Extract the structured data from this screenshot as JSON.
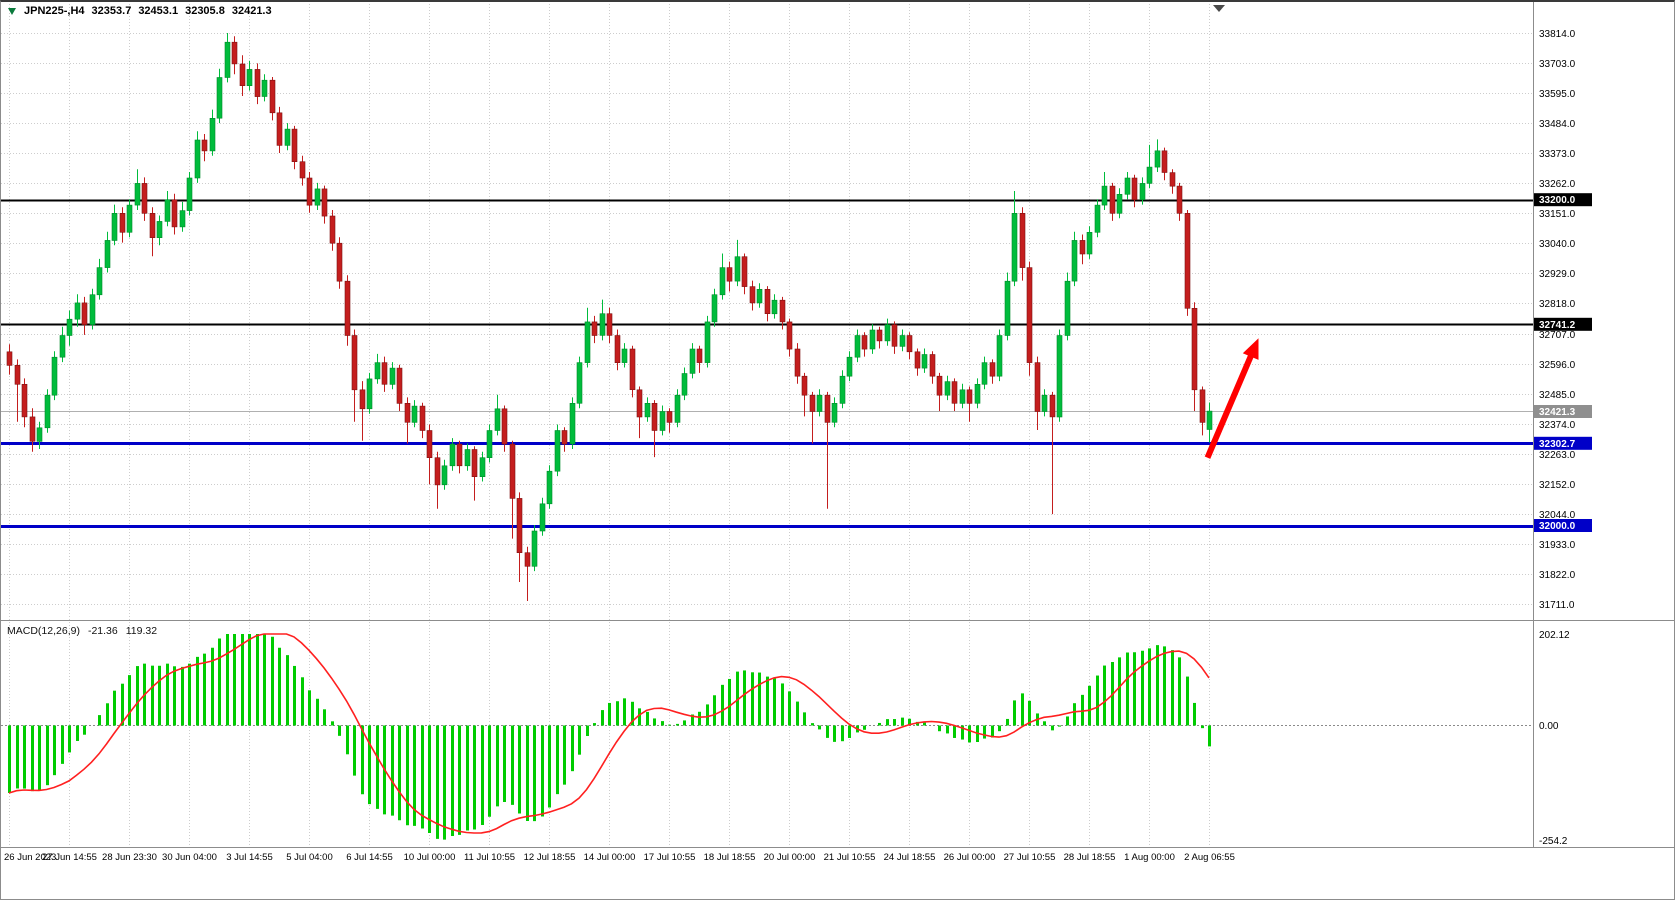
{
  "header": {
    "symbol_period": "JPN225-,H4",
    "open": "32353.7",
    "high": "32453.1",
    "low": "32305.8",
    "close": "32421.3"
  },
  "colors": {
    "bull": "#00bc3c",
    "bear": "#c41e1e",
    "bull_edge": "#008a2a",
    "bear_edge": "#7e1212",
    "macd_hist": "#00cc00",
    "macd_signal": "#ff2020",
    "hline_black": "#000000",
    "hline_blue": "#0000c8",
    "current_price_line": "#b0b0b0",
    "current_price_badge": "#8f8f8f",
    "grid": "#cdcdcd",
    "arrow": "#ff0000"
  },
  "chart_data": {
    "type": "candlestick",
    "symbol": "JPN225-",
    "timeframe": "H4",
    "price_axis": {
      "top": 33814.0,
      "bottom": 31711.0,
      "tick_labels": [
        "33814.0",
        "33703.0",
        "33595.0",
        "33484.0",
        "33373.0",
        "33262.0",
        "33151.0",
        "33040.0",
        "32929.0",
        "32818.0",
        "32707.0",
        "32596.0",
        "32485.0",
        "32374.0",
        "32263.0",
        "32152.0",
        "32044.0",
        "31933.0",
        "31822.0",
        "31711.0"
      ]
    },
    "time_labels": [
      "26 Jun 2023",
      "27 Jun 14:55",
      "28 Jun 23:30",
      "30 Jun 04:00",
      "3 Jul 14:55",
      "5 Jul 04:00",
      "6 Jul 14:55",
      "10 Jul 00:00",
      "11 Jul 10:55",
      "12 Jul 18:55",
      "14 Jul 00:00",
      "17 Jul 10:55",
      "18 Jul 18:55",
      "20 Jul 00:00",
      "21 Jul 10:55",
      "24 Jul 18:55",
      "26 Jul 00:00",
      "27 Jul 10:55",
      "28 Jul 18:55",
      "1 Aug 00:00",
      "2 Aug 06:55"
    ],
    "bars_per_label": 8,
    "candles": [
      [
        32640,
        32668,
        32556,
        32590
      ],
      [
        32590,
        32612,
        32382,
        32520
      ],
      [
        32520,
        32542,
        32362,
        32400
      ],
      [
        32400,
        32432,
        32272,
        32310
      ],
      [
        32310,
        32382,
        32282,
        32360
      ],
      [
        32360,
        32502,
        32342,
        32480
      ],
      [
        32480,
        32642,
        32462,
        32620
      ],
      [
        32620,
        32732,
        32602,
        32700
      ],
      [
        32700,
        32792,
        32662,
        32760
      ],
      [
        32760,
        32852,
        32732,
        32820
      ],
      [
        32820,
        32842,
        32702,
        32740
      ],
      [
        32740,
        32872,
        32722,
        32850
      ],
      [
        32850,
        32982,
        32832,
        32950
      ],
      [
        32950,
        33082,
        32932,
        33050
      ],
      [
        33050,
        33182,
        33032,
        33150
      ],
      [
        33150,
        33172,
        33042,
        33080
      ],
      [
        33080,
        33202,
        33062,
        33180
      ],
      [
        33180,
        33312,
        33162,
        33260
      ],
      [
        33260,
        33282,
        33122,
        33150
      ],
      [
        33150,
        33172,
        32992,
        33060
      ],
      [
        33060,
        33142,
        33032,
        33120
      ],
      [
        33120,
        33232,
        33102,
        33200
      ],
      [
        33200,
        33222,
        33072,
        33100
      ],
      [
        33100,
        33192,
        33082,
        33160
      ],
      [
        33160,
        33302,
        33142,
        33280
      ],
      [
        33280,
        33452,
        33262,
        33420
      ],
      [
        33420,
        33442,
        33342,
        33380
      ],
      [
        33380,
        33532,
        33362,
        33500
      ],
      [
        33500,
        33682,
        33482,
        33650
      ],
      [
        33650,
        33814,
        33632,
        33780
      ],
      [
        33780,
        33802,
        33662,
        33700
      ],
      [
        33700,
        33732,
        33582,
        33620
      ],
      [
        33620,
        33712,
        33602,
        33680
      ],
      [
        33680,
        33702,
        33552,
        33580
      ],
      [
        33580,
        33662,
        33562,
        33640
      ],
      [
        33640,
        33652,
        33492,
        33520
      ],
      [
        33520,
        33542,
        33372,
        33400
      ],
      [
        33400,
        33482,
        33382,
        33460
      ],
      [
        33460,
        33472,
        33312,
        33340
      ],
      [
        33340,
        33362,
        33252,
        33280
      ],
      [
        33280,
        33302,
        33152,
        33180
      ],
      [
        33180,
        33262,
        33162,
        33240
      ],
      [
        33240,
        33252,
        33112,
        33140
      ],
      [
        33140,
        33162,
        33012,
        33040
      ],
      [
        33040,
        33062,
        32872,
        32900
      ],
      [
        32900,
        32922,
        32662,
        32700
      ],
      [
        32700,
        32722,
        32382,
        32500
      ],
      [
        32500,
        32532,
        32312,
        32430
      ],
      [
        32430,
        32562,
        32412,
        32540
      ],
      [
        32540,
        32632,
        32522,
        32600
      ],
      [
        32600,
        32622,
        32492,
        32520
      ],
      [
        32520,
        32602,
        32502,
        32580
      ],
      [
        32580,
        32592,
        32422,
        32450
      ],
      [
        32450,
        32472,
        32302,
        32380
      ],
      [
        32380,
        32462,
        32362,
        32440
      ],
      [
        32440,
        32452,
        32322,
        32350
      ],
      [
        32350,
        32372,
        32152,
        32250
      ],
      [
        32250,
        32272,
        32062,
        32150
      ],
      [
        32150,
        32242,
        32132,
        32220
      ],
      [
        32220,
        32322,
        32202,
        32300
      ],
      [
        32300,
        32312,
        32192,
        32220
      ],
      [
        32220,
        32302,
        32202,
        32280
      ],
      [
        32280,
        32292,
        32092,
        32180
      ],
      [
        32180,
        32272,
        32162,
        32250
      ],
      [
        32250,
        32372,
        32232,
        32350
      ],
      [
        32350,
        32482,
        32332,
        32430
      ],
      [
        32430,
        32442,
        32272,
        32300
      ],
      [
        32300,
        32312,
        31952,
        32100
      ],
      [
        32100,
        32122,
        31792,
        31900
      ],
      [
        31900,
        31922,
        31722,
        31850
      ],
      [
        31850,
        32002,
        31832,
        31980
      ],
      [
        31980,
        32102,
        31962,
        32080
      ],
      [
        32080,
        32222,
        32062,
        32200
      ],
      [
        32200,
        32372,
        32182,
        32350
      ],
      [
        32350,
        32362,
        32272,
        32300
      ],
      [
        32300,
        32472,
        32282,
        32450
      ],
      [
        32450,
        32622,
        32432,
        32600
      ],
      [
        32600,
        32802,
        32582,
        32750
      ],
      [
        32750,
        32772,
        32672,
        32700
      ],
      [
        32700,
        32832,
        32682,
        32780
      ],
      [
        32780,
        32802,
        32672,
        32700
      ],
      [
        32700,
        32722,
        32572,
        32600
      ],
      [
        32600,
        32672,
        32582,
        32650
      ],
      [
        32650,
        32662,
        32472,
        32500
      ],
      [
        32500,
        32512,
        32322,
        32400
      ],
      [
        32400,
        32472,
        32382,
        32450
      ],
      [
        32450,
        32462,
        32252,
        32350
      ],
      [
        32350,
        32442,
        32332,
        32420
      ],
      [
        32420,
        32432,
        32342,
        32380
      ],
      [
        32380,
        32502,
        32362,
        32480
      ],
      [
        32480,
        32582,
        32462,
        32560
      ],
      [
        32560,
        32672,
        32542,
        32650
      ],
      [
        32650,
        32662,
        32562,
        32600
      ],
      [
        32600,
        32772,
        32582,
        32750
      ],
      [
        32750,
        32872,
        32732,
        32850
      ],
      [
        32850,
        33002,
        32832,
        32950
      ],
      [
        32950,
        32972,
        32862,
        32900
      ],
      [
        32900,
        33052,
        32882,
        32990
      ],
      [
        32990,
        33002,
        32852,
        32880
      ],
      [
        32880,
        32902,
        32792,
        32820
      ],
      [
        32820,
        32892,
        32802,
        32870
      ],
      [
        32870,
        32882,
        32752,
        32780
      ],
      [
        32780,
        32852,
        32762,
        32830
      ],
      [
        32830,
        32842,
        32722,
        32750
      ],
      [
        32750,
        32762,
        32622,
        32650
      ],
      [
        32650,
        32672,
        32522,
        32550
      ],
      [
        32550,
        32562,
        32402,
        32480
      ],
      [
        32480,
        32492,
        32302,
        32420
      ],
      [
        32420,
        32502,
        32402,
        32480
      ],
      [
        32480,
        32492,
        32062,
        32380
      ],
      [
        32380,
        32472,
        32362,
        32450
      ],
      [
        32450,
        32572,
        32432,
        32550
      ],
      [
        32550,
        32642,
        32532,
        32620
      ],
      [
        32620,
        32722,
        32602,
        32700
      ],
      [
        32700,
        32712,
        32622,
        32650
      ],
      [
        32650,
        32742,
        32632,
        32720
      ],
      [
        32720,
        32732,
        32652,
        32680
      ],
      [
        32680,
        32762,
        32662,
        32740
      ],
      [
        32740,
        32752,
        32632,
        32660
      ],
      [
        32660,
        32722,
        32642,
        32700
      ],
      [
        32700,
        32712,
        32612,
        32640
      ],
      [
        32640,
        32652,
        32552,
        32580
      ],
      [
        32580,
        32652,
        32562,
        32630
      ],
      [
        32630,
        32642,
        32522,
        32550
      ],
      [
        32550,
        32562,
        32422,
        32480
      ],
      [
        32480,
        32552,
        32462,
        32530
      ],
      [
        32530,
        32542,
        32422,
        32450
      ],
      [
        32450,
        32522,
        32432,
        32500
      ],
      [
        32500,
        32512,
        32382,
        32450
      ],
      [
        32450,
        32542,
        32432,
        32520
      ],
      [
        32520,
        32622,
        32502,
        32600
      ],
      [
        32600,
        32612,
        32522,
        32550
      ],
      [
        32550,
        32722,
        32532,
        32700
      ],
      [
        32700,
        32932,
        32682,
        32900
      ],
      [
        32900,
        33232,
        32882,
        33150
      ],
      [
        33150,
        33172,
        32902,
        32950
      ],
      [
        32950,
        32972,
        32552,
        32600
      ],
      [
        32600,
        32622,
        32352,
        32420
      ],
      [
        32420,
        32502,
        32402,
        32480
      ],
      [
        32480,
        32492,
        32042,
        32400
      ],
      [
        32400,
        32722,
        32382,
        32700
      ],
      [
        32700,
        32932,
        32682,
        32900
      ],
      [
        32900,
        33082,
        32882,
        33050
      ],
      [
        33050,
        33072,
        32962,
        33000
      ],
      [
        33000,
        33102,
        32982,
        33080
      ],
      [
        33080,
        33202,
        33062,
        33180
      ],
      [
        33180,
        33302,
        33162,
        33250
      ],
      [
        33250,
        33262,
        33122,
        33150
      ],
      [
        33150,
        33242,
        33132,
        33220
      ],
      [
        33220,
        33302,
        33202,
        33280
      ],
      [
        33280,
        33292,
        33172,
        33200
      ],
      [
        33200,
        33282,
        33182,
        33260
      ],
      [
        33260,
        33402,
        33242,
        33320
      ],
      [
        33320,
        33422,
        33302,
        33380
      ],
      [
        33380,
        33392,
        33272,
        33300
      ],
      [
        33300,
        33312,
        33222,
        33250
      ],
      [
        33250,
        33262,
        33122,
        33150
      ],
      [
        33150,
        33162,
        32772,
        32800
      ],
      [
        32800,
        32822,
        32422,
        32500
      ],
      [
        32500,
        32512,
        32332,
        32380
      ],
      [
        32353.7,
        32453.1,
        32305.8,
        32421.3
      ]
    ],
    "hlines": [
      {
        "value": 33200.0,
        "label": "33200.0",
        "color_key": "hline_black",
        "width": 2
      },
      {
        "value": 32741.2,
        "label": "32741.2",
        "color_key": "hline_black",
        "width": 2
      },
      {
        "value": 32302.7,
        "label": "32302.7",
        "color_key": "hline_blue",
        "width": 3
      },
      {
        "value": 32000.0,
        "label": "32000.0",
        "color_key": "hline_blue",
        "width": 3
      }
    ],
    "current_price": {
      "value": 32421.3,
      "label": "32421.3"
    },
    "arrow": {
      "from_bar": 159.8,
      "from_price": 32250,
      "to_bar": 166.6,
      "to_price": 32690
    },
    "macd": {
      "label": "MACD(12,26,9)",
      "main_value": "-21.36",
      "signal_value": "119.32",
      "params": {
        "fast": 12,
        "slow": 26,
        "signal": 9
      },
      "scale": {
        "max": 202.12,
        "min": -254.2,
        "labels": {
          "top": "202.12",
          "zero": "0.00",
          "bottom": "-254.2"
        }
      }
    }
  }
}
